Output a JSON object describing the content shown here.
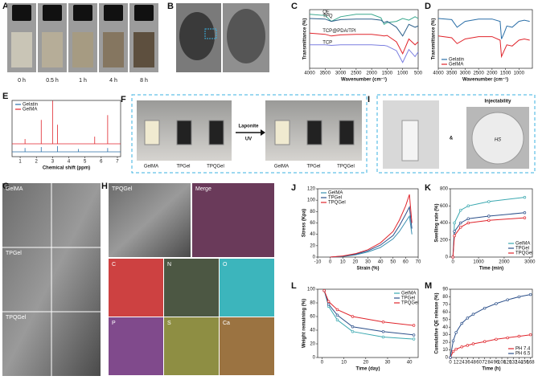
{
  "panel_labels": [
    "A",
    "B",
    "C",
    "D",
    "E",
    "F",
    "G",
    "H",
    "I",
    "J",
    "K",
    "L",
    "M"
  ],
  "A": {
    "times": [
      "0 h",
      "0.5 h",
      "1 h",
      "4 h",
      "8 h"
    ]
  },
  "F": {
    "before": [
      "GelMA",
      "TPGel",
      "TPQGel"
    ],
    "after": [
      "GelMA",
      "TPGel",
      "TPQGel"
    ],
    "arrow_top": "Laponite",
    "arrow_bottom": "UV"
  },
  "I": {
    "title": "Injectability",
    "dish_text": "HS",
    "amp": "&"
  },
  "G": {
    "labels": [
      "GelMA",
      "TPGel",
      "TPQGel"
    ]
  },
  "H": {
    "labels": [
      "TPQGel",
      "Merge"
    ],
    "elements": [
      "C",
      "N",
      "O",
      "P",
      "S",
      "Ca"
    ]
  },
  "chart_data": [
    {
      "type": "line",
      "xlabel": "Wavenumber (cm⁻¹)",
      "ylabel": "Transmittance (%)",
      "x": [
        4000,
        3500,
        3300,
        3000,
        2500,
        2000,
        1700,
        1600,
        1500,
        1200,
        1000,
        800,
        600,
        500
      ],
      "xlim": [
        4000,
        500
      ],
      "xticks": [
        4000,
        3500,
        3000,
        2500,
        2000,
        1500,
        1000,
        500
      ],
      "ylim": [
        0,
        100
      ],
      "series": [
        {
          "name": "QE",
          "color": "#3aa88e",
          "values": [
            92,
            90,
            80,
            88,
            92,
            92,
            86,
            75,
            78,
            80,
            85,
            82,
            88,
            85
          ]
        },
        {
          "name": "TPQ",
          "color": "#2b5f8a",
          "values": [
            85,
            84,
            80,
            83,
            84,
            84,
            82,
            78,
            80,
            70,
            55,
            75,
            70,
            72
          ]
        },
        {
          "name": "TCP@PDA/TPI",
          "color": "#e0242b",
          "values": [
            60,
            58,
            55,
            57,
            58,
            58,
            56,
            55,
            56,
            45,
            25,
            50,
            40,
            45
          ]
        },
        {
          "name": "TCP",
          "color": "#7b7fe0",
          "values": [
            40,
            40,
            39,
            40,
            40,
            40,
            39,
            39,
            38,
            30,
            10,
            32,
            20,
            28
          ]
        }
      ]
    },
    {
      "type": "line",
      "xlabel": "Wavenumber (cm⁻¹)",
      "ylabel": "Transmittance (%)",
      "x": [
        4000,
        3500,
        3300,
        3000,
        2500,
        2000,
        1700,
        1650,
        1550,
        1450,
        1250,
        1000,
        800,
        600
      ],
      "xlim": [
        4000,
        500
      ],
      "xticks": [
        4000,
        3500,
        3000,
        2500,
        2000,
        1500,
        1000
      ],
      "ylim": [
        0,
        100
      ],
      "legend": "lower-left",
      "series": [
        {
          "name": "Gelatin",
          "color": "#2b6fa8",
          "values": [
            85,
            83,
            70,
            80,
            84,
            84,
            80,
            50,
            60,
            72,
            70,
            80,
            82,
            80
          ]
        },
        {
          "name": "GelMA",
          "color": "#e0242b",
          "values": [
            55,
            52,
            42,
            50,
            54,
            54,
            48,
            20,
            30,
            40,
            38,
            48,
            50,
            48
          ]
        }
      ]
    },
    {
      "type": "spectrum",
      "xlabel": "Chemical shift (ppm)",
      "xlim": [
        0.5,
        7.2
      ],
      "xticks": [
        1,
        2,
        3,
        4,
        5,
        6,
        7
      ],
      "ylim": [
        0,
        100
      ],
      "legend": "upper-left",
      "series": [
        {
          "name": "Gelatin",
          "color": "#2b6fa8",
          "x": [
            1.3,
            2.3,
            3.3,
            4.6,
            6.4
          ],
          "values": [
            8,
            10,
            12,
            6,
            8
          ]
        },
        {
          "name": "GelMA",
          "color": "#e0242b",
          "x": [
            1.3,
            2.3,
            3.0,
            3.3,
            5.6,
            6.4
          ],
          "values": [
            10,
            50,
            90,
            40,
            15,
            60
          ]
        }
      ]
    },
    {
      "type": "line",
      "xlabel": "Strain (%)",
      "ylabel": "Stress (Kpa)",
      "x": [
        0,
        10,
        20,
        30,
        40,
        50,
        55,
        60,
        63,
        65
      ],
      "xlim": [
        -10,
        70
      ],
      "xticks": [
        -10,
        0,
        10,
        20,
        30,
        40,
        50,
        60,
        70
      ],
      "ylim": [
        0,
        120
      ],
      "yticks": [
        0,
        20,
        40,
        60,
        80,
        100,
        120
      ],
      "legend": "upper-left",
      "series": [
        {
          "name": "GelMA",
          "color": "#3a8fb0",
          "values": [
            0,
            1,
            4,
            9,
            17,
            32,
            45,
            62,
            72,
            40
          ]
        },
        {
          "name": "TPGel",
          "color": "#2b4f8a",
          "values": [
            0,
            1.5,
            5,
            11,
            21,
            38,
            55,
            75,
            88,
            50
          ]
        },
        {
          "name": "TPQGel",
          "color": "#e0242b",
          "values": [
            0,
            2,
            6,
            13,
            25,
            45,
            65,
            90,
            110,
            60
          ]
        }
      ]
    },
    {
      "type": "line",
      "markers": true,
      "xlabel": "Time (min)",
      "ylabel": "Swelling rate (%)",
      "x": [
        0,
        60,
        300,
        600,
        1400,
        2800
      ],
      "xlim": [
        -100,
        3100
      ],
      "xticks": [
        0,
        1000,
        2000,
        3000
      ],
      "ylim": [
        0,
        800
      ],
      "yticks": [
        0,
        200,
        400,
        600,
        800
      ],
      "legend": "lower-right",
      "series": [
        {
          "name": "GelMA",
          "color": "#3aa8b0",
          "values": [
            0,
            400,
            550,
            600,
            650,
            700
          ]
        },
        {
          "name": "TPGel",
          "color": "#2b4f8a",
          "values": [
            0,
            300,
            400,
            450,
            480,
            520
          ]
        },
        {
          "name": "TPQGel",
          "color": "#e0242b",
          "values": [
            0,
            250,
            350,
            400,
            430,
            460
          ]
        }
      ]
    },
    {
      "type": "line",
      "markers": true,
      "xlabel": "Time (day)",
      "ylabel": "Weight remaining (%)",
      "x": [
        1,
        3,
        7,
        14,
        28,
        42
      ],
      "xlim": [
        -2,
        44
      ],
      "xticks": [
        0,
        10,
        20,
        30,
        40
      ],
      "ylim": [
        0,
        100
      ],
      "yticks": [
        0,
        20,
        40,
        60,
        80,
        100
      ],
      "legend": "upper-right",
      "series": [
        {
          "name": "GelMA",
          "color": "#3aa8b0",
          "values": [
            98,
            75,
            55,
            38,
            30,
            27
          ]
        },
        {
          "name": "TPGel",
          "color": "#2b4f8a",
          "values": [
            98,
            78,
            62,
            45,
            38,
            33
          ]
        },
        {
          "name": "TPQGel",
          "color": "#e0242b",
          "values": [
            98,
            82,
            70,
            60,
            52,
            47
          ]
        }
      ]
    },
    {
      "type": "line",
      "markers": true,
      "xlabel": "Time (h)",
      "ylabel": "Cumulative QE release (%)",
      "x": [
        0,
        6,
        12,
        24,
        36,
        48,
        72,
        96,
        120,
        144,
        168
      ],
      "xlim": [
        0,
        172
      ],
      "xticks": [
        0,
        12,
        24,
        36,
        48,
        60,
        72,
        84,
        96,
        108,
        120,
        132,
        144,
        156,
        168
      ],
      "ylim": [
        0,
        90
      ],
      "yticks": [
        0,
        10,
        20,
        30,
        40,
        50,
        60,
        70,
        80,
        90
      ],
      "legend": "lower-right",
      "series": [
        {
          "name": "PH 7.4",
          "color": "#e0242b",
          "values": [
            0,
            8,
            11,
            14,
            16,
            18,
            21,
            24,
            26,
            28,
            30
          ]
        },
        {
          "name": "PH 6.5",
          "color": "#2b4f8a",
          "values": [
            0,
            22,
            33,
            45,
            52,
            57,
            65,
            71,
            76,
            80,
            83
          ]
        }
      ]
    }
  ]
}
